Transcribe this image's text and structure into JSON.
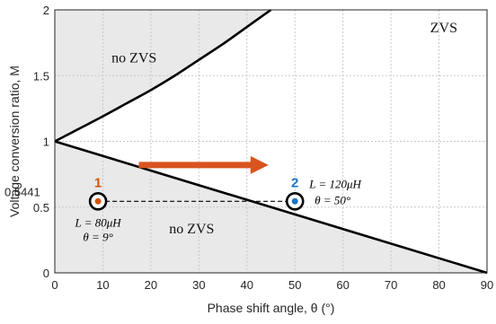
{
  "chart_data": {
    "type": "line",
    "xlabel": "Phase shift angle, θ (°)",
    "ylabel": "Voltage conversion ratio, M",
    "xlim": [
      0,
      90
    ],
    "ylim": [
      0,
      2
    ],
    "xticks": [
      0,
      10,
      20,
      30,
      40,
      50,
      60,
      70,
      80,
      90
    ],
    "yticks": [
      0,
      0.5,
      1,
      1.5,
      2
    ],
    "xtick_labels": [
      "0",
      "10",
      "20",
      "30",
      "40",
      "50",
      "60",
      "70",
      "80",
      "90"
    ],
    "ytick_labels": [
      "0",
      "0.5",
      "1",
      "1.5",
      "2"
    ],
    "grid": true,
    "series": [
      {
        "role": "upper ZVS boundary",
        "x": [
          0,
          5,
          10,
          15,
          20,
          25,
          30,
          35,
          40,
          45
        ],
        "y": [
          1.0,
          1.095,
          1.19,
          1.29,
          1.39,
          1.5,
          1.62,
          1.74,
          1.87,
          2.0
        ]
      },
      {
        "role": "lower ZVS boundary",
        "x": [
          0,
          90
        ],
        "y": [
          1.0,
          0.0
        ]
      }
    ],
    "reference_line": {
      "y": 0.5441,
      "x_range": [
        9,
        50
      ],
      "label": "0.5441"
    },
    "points": [
      {
        "label": "1",
        "x": 9,
        "y": 0.5441,
        "color": "#d35400",
        "annotation_L": "L = 80μH",
        "annotation_theta": "θ = 9°"
      },
      {
        "label": "2",
        "x": 50,
        "y": 0.5441,
        "color": "#1a73c8",
        "annotation_L": "L = 120μH",
        "annotation_theta": "θ = 50°"
      }
    ],
    "arrow": {
      "from": [
        17.5,
        0.82
      ],
      "to": [
        44.5,
        0.82
      ],
      "color": "#d9541e"
    },
    "regions": [
      {
        "text": "no ZVS",
        "x": 16.5,
        "y": 1.6
      },
      {
        "text": "ZVS",
        "x": 81,
        "y": 1.83
      },
      {
        "text": "no ZVS",
        "x": 28.5,
        "y": 0.3
      }
    ],
    "colors": {
      "shade": "#e9e9e9",
      "grid": "#c8c8c8",
      "curve": "#000000"
    }
  }
}
